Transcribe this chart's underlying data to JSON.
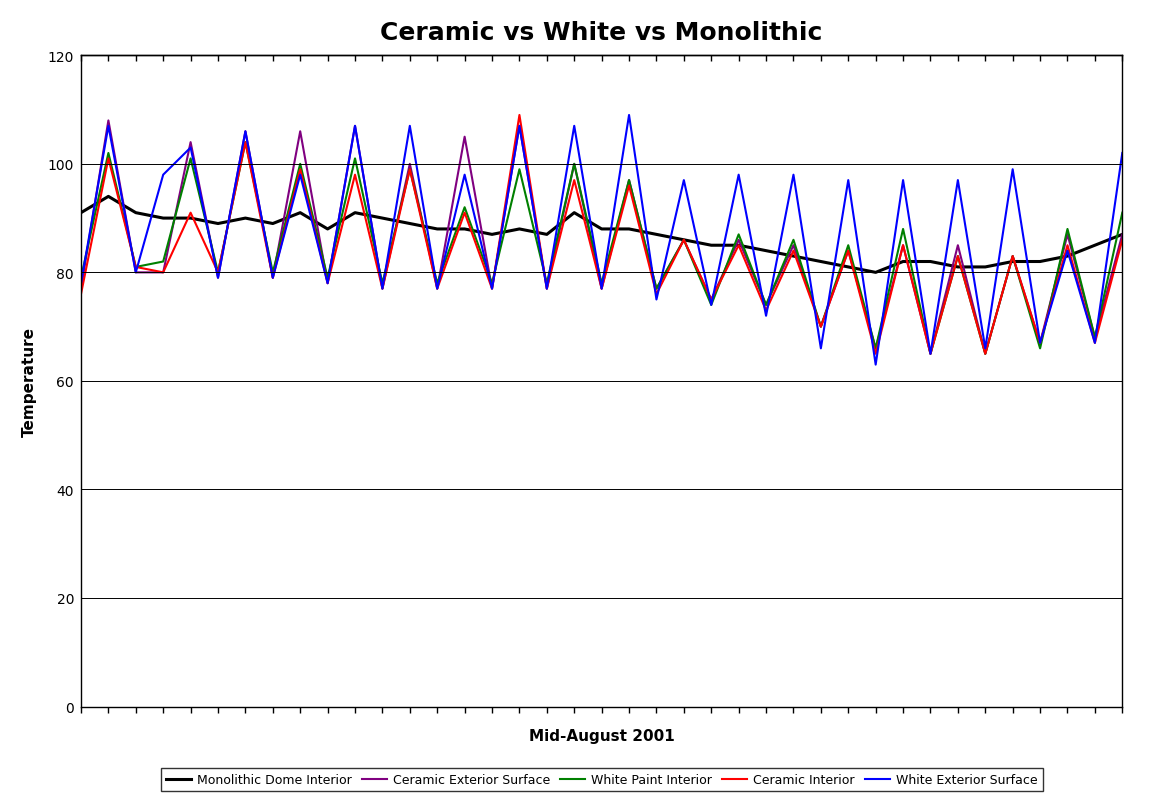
{
  "title": "Ceramic vs White vs Monolithic",
  "xlabel": "Mid-August 2001",
  "ylabel": "Temperature",
  "ylim": [
    0,
    120
  ],
  "yticks": [
    0,
    20,
    40,
    60,
    80,
    100,
    120
  ],
  "series": {
    "Monolithic Dome Interior": {
      "color": "#000000",
      "linewidth": 2.2,
      "values": [
        91,
        94,
        91,
        90,
        90,
        89,
        90,
        89,
        91,
        88,
        91,
        90,
        89,
        88,
        88,
        87,
        88,
        87,
        91,
        88,
        88,
        87,
        86,
        85,
        85,
        84,
        83,
        82,
        81,
        80,
        82,
        82,
        81,
        81,
        82,
        82,
        83,
        85,
        87
      ]
    },
    "Ceramic Exterior Surface": {
      "color": "#800080",
      "linewidth": 1.5,
      "values": [
        77,
        108,
        80,
        80,
        104,
        79,
        106,
        79,
        106,
        78,
        107,
        77,
        100,
        77,
        105,
        77,
        107,
        77,
        100,
        77,
        97,
        77,
        86,
        75,
        86,
        74,
        85,
        70,
        84,
        66,
        85,
        65,
        85,
        65,
        83,
        67,
        87,
        68,
        87
      ]
    },
    "White Paint Interior": {
      "color": "#008000",
      "linewidth": 1.5,
      "values": [
        79,
        102,
        81,
        82,
        101,
        80,
        104,
        80,
        100,
        79,
        101,
        78,
        99,
        78,
        92,
        78,
        99,
        78,
        100,
        78,
        97,
        77,
        86,
        74,
        87,
        74,
        86,
        70,
        85,
        66,
        88,
        65,
        83,
        65,
        83,
        66,
        88,
        68,
        91
      ]
    },
    "Ceramic Interior": {
      "color": "#FF0000",
      "linewidth": 1.5,
      "values": [
        76,
        101,
        81,
        80,
        91,
        80,
        104,
        79,
        99,
        78,
        98,
        77,
        99,
        77,
        91,
        77,
        109,
        77,
        97,
        77,
        96,
        76,
        86,
        75,
        85,
        73,
        84,
        70,
        84,
        65,
        85,
        65,
        83,
        65,
        83,
        67,
        85,
        67,
        86
      ]
    },
    "White Exterior Surface": {
      "color": "#0000FF",
      "linewidth": 1.5,
      "values": [
        78,
        107,
        80,
        98,
        103,
        79,
        106,
        79,
        98,
        78,
        107,
        77,
        107,
        77,
        98,
        77,
        107,
        77,
        107,
        77,
        109,
        75,
        97,
        74,
        98,
        72,
        98,
        66,
        97,
        63,
        97,
        65,
        97,
        66,
        99,
        67,
        84,
        67,
        102
      ]
    }
  },
  "legend_order": [
    "Monolithic Dome Interior",
    "Ceramic Exterior Surface",
    "White Paint Interior",
    "Ceramic Interior",
    "White Exterior Surface"
  ],
  "background_color": "#ffffff",
  "title_fontsize": 18,
  "axis_label_fontsize": 11,
  "tick_fontsize": 10,
  "legend_fontsize": 9
}
